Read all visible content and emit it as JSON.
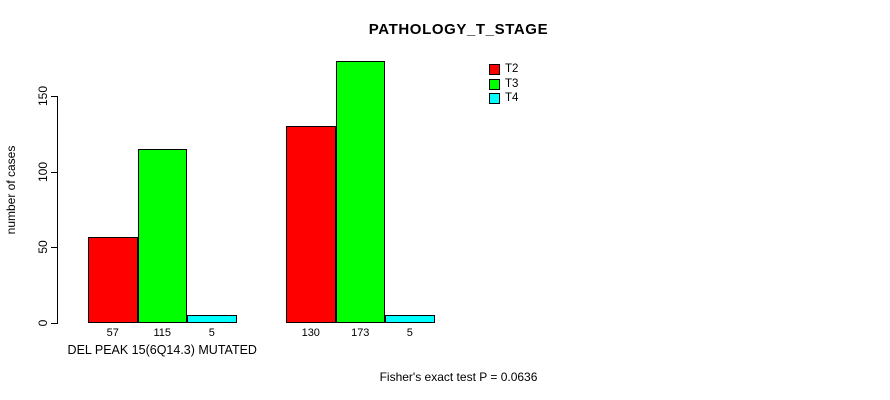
{
  "chart_data": {
    "type": "bar",
    "title": "PATHOLOGY_T_STAGE",
    "ylabel": "number of cases",
    "xlabel": "",
    "ylim": [
      0,
      150
    ],
    "yticks": [
      0,
      50,
      100,
      150
    ],
    "grid": false,
    "legend_position": "top-right",
    "bar_value_labels_shown": true,
    "categories": [
      "DEL PEAK 15(6Q14.3) MUTATED",
      ""
    ],
    "series": [
      {
        "name": "T2",
        "color": "#ff0000",
        "values": [
          57,
          130
        ]
      },
      {
        "name": "T3",
        "color": "#00ff00",
        "values": [
          115,
          173
        ]
      },
      {
        "name": "T4",
        "color": "#00ffff",
        "values": [
          5,
          5
        ]
      }
    ],
    "annotation": "Fisher's exact test P = 0.0636"
  },
  "colors": {
    "background": "#ffffff",
    "axis": "#000000",
    "text": "#000000",
    "bar_border": "#000000"
  }
}
